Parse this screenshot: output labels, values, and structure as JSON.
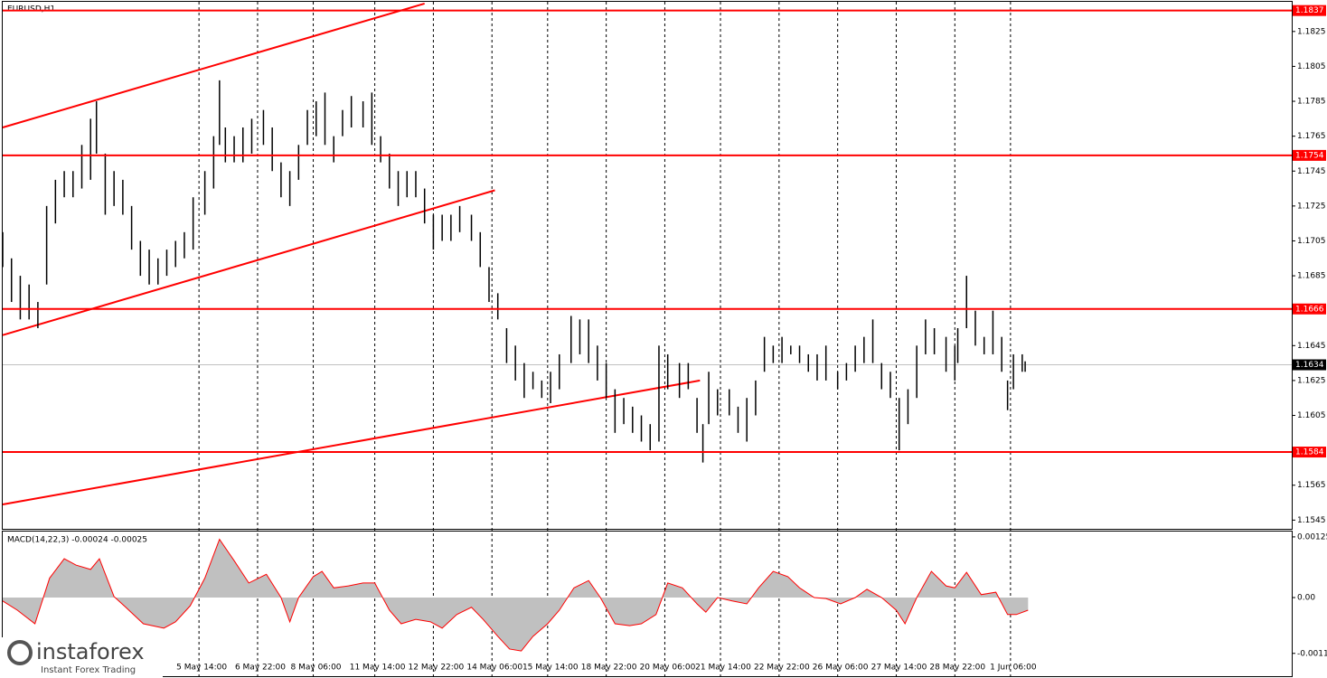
{
  "chart_data": [
    {
      "type": "ohlc",
      "title": "EURUSD,H1",
      "x": [
        0,
        3,
        6,
        9,
        12,
        15,
        18,
        21,
        24,
        27,
        30,
        32,
        35,
        38,
        41,
        44,
        47,
        50,
        53,
        56,
        59,
        62,
        65,
        69,
        72,
        74,
        76,
        79,
        82,
        85,
        89,
        92,
        95,
        98,
        101,
        104,
        107,
        110,
        113,
        116,
        119,
        123,
        126,
        129,
        132,
        135,
        138,
        141,
        144,
        147,
        150,
        153,
        156,
        160,
        163,
        166,
        169,
        172,
        175,
        178,
        181,
        184,
        187,
        190,
        194,
        197,
        200,
        203,
        206,
        209,
        212,
        215,
        218,
        221,
        224,
        227,
        231,
        234,
        237,
        239,
        241,
        244,
        248,
        251,
        254,
        257,
        260,
        263,
        266,
        269,
        272,
        275,
        278,
        281,
        285,
        288,
        291,
        294,
        297,
        300,
        303,
        306,
        309,
        312,
        315,
        318,
        322,
        325,
        326,
        329,
        332,
        335,
        338,
        341,
        343,
        345,
        348,
        349
      ],
      "high": [
        1.171,
        1.1695,
        1.1685,
        1.168,
        1.167,
        1.1725,
        1.174,
        1.1745,
        1.1745,
        1.176,
        1.1775,
        1.1785,
        1.1755,
        1.1745,
        1.174,
        1.1725,
        1.1705,
        1.17,
        1.1695,
        1.17,
        1.1705,
        1.171,
        1.173,
        1.1745,
        1.1765,
        1.1797,
        1.177,
        1.1765,
        1.177,
        1.1775,
        1.178,
        1.177,
        1.175,
        1.1745,
        1.176,
        1.178,
        1.1785,
        1.179,
        1.1765,
        1.178,
        1.1788,
        1.1785,
        1.179,
        1.1765,
        1.1755,
        1.1745,
        1.1745,
        1.1745,
        1.1735,
        1.172,
        1.172,
        1.172,
        1.1725,
        1.172,
        1.171,
        1.169,
        1.1675,
        1.1655,
        1.1645,
        1.1635,
        1.163,
        1.1625,
        1.163,
        1.164,
        1.1662,
        1.166,
        1.166,
        1.1645,
        1.1635,
        1.162,
        1.1615,
        1.161,
        1.1605,
        1.16,
        1.1645,
        1.164,
        1.1635,
        1.1635,
        1.1615,
        1.16,
        1.163,
        1.162,
        1.162,
        1.161,
        1.1615,
        1.1625,
        1.165,
        1.1645,
        1.165,
        1.1645,
        1.1645,
        1.164,
        1.164,
        1.1645,
        1.163,
        1.1635,
        1.1645,
        1.165,
        1.166,
        1.1635,
        1.163,
        1.1615,
        1.162,
        1.1645,
        1.166,
        1.1655,
        1.165,
        1.1645,
        1.1655,
        1.1685,
        1.1665,
        1.165,
        1.1665,
        1.165,
        1.1625,
        1.164,
        1.164,
        1.1636
      ],
      "low": [
        1.169,
        1.167,
        1.166,
        1.166,
        1.1655,
        1.168,
        1.1715,
        1.173,
        1.173,
        1.1735,
        1.174,
        1.1755,
        1.172,
        1.1725,
        1.172,
        1.17,
        1.1685,
        1.168,
        1.168,
        1.1685,
        1.169,
        1.1695,
        1.17,
        1.172,
        1.1735,
        1.176,
        1.175,
        1.175,
        1.175,
        1.1755,
        1.176,
        1.1745,
        1.173,
        1.1725,
        1.174,
        1.176,
        1.1765,
        1.176,
        1.175,
        1.1765,
        1.177,
        1.177,
        1.176,
        1.175,
        1.1735,
        1.1725,
        1.173,
        1.173,
        1.1715,
        1.17,
        1.1705,
        1.1705,
        1.171,
        1.1705,
        1.169,
        1.167,
        1.166,
        1.1635,
        1.1625,
        1.1615,
        1.162,
        1.1615,
        1.1612,
        1.162,
        1.1635,
        1.164,
        1.1635,
        1.1625,
        1.1615,
        1.1595,
        1.16,
        1.1595,
        1.159,
        1.1585,
        1.159,
        1.162,
        1.1615,
        1.162,
        1.1595,
        1.1578,
        1.16,
        1.1605,
        1.1605,
        1.1595,
        1.159,
        1.1605,
        1.163,
        1.1635,
        1.1635,
        1.164,
        1.1635,
        1.163,
        1.1625,
        1.1625,
        1.162,
        1.1625,
        1.163,
        1.1635,
        1.1635,
        1.162,
        1.1615,
        1.1585,
        1.16,
        1.1615,
        1.164,
        1.164,
        1.163,
        1.1625,
        1.1635,
        1.1655,
        1.1645,
        1.164,
        1.164,
        1.163,
        1.1608,
        1.162,
        1.163,
        1.163
      ],
      "color": "#000000",
      "xlim": [
        0,
        440
      ],
      "xticks": [
        {
          "value": 67,
          "label": "5 May 14:00"
        },
        {
          "value": 87,
          "label": "6 May 22:00"
        },
        {
          "value": 106,
          "label": "8 May 06:00"
        },
        {
          "value": 127,
          "label": "11 May 14:00"
        },
        {
          "value": 147,
          "label": "12 May 22:00"
        },
        {
          "value": 167,
          "label": "14 May 06:00"
        },
        {
          "value": 186,
          "label": "15 May 14:00"
        },
        {
          "value": 206,
          "label": "18 May 22:00"
        },
        {
          "value": 226,
          "label": "20 May 06:00"
        },
        {
          "value": 245,
          "label": "21 May 14:00"
        },
        {
          "value": 265,
          "label": "22 May 22:00"
        },
        {
          "value": 285,
          "label": "26 May 06:00"
        },
        {
          "value": 305,
          "label": "27 May 14:00"
        },
        {
          "value": 325,
          "label": "28 May 22:00"
        },
        {
          "value": 344,
          "label": "1 Jun 06:00"
        }
      ],
      "ylim": [
        1.154,
        1.1842
      ],
      "yticks": [
        1.1825,
        1.1805,
        1.1785,
        1.1765,
        1.1745,
        1.1725,
        1.1705,
        1.1685,
        1.1645,
        1.1625,
        1.1605,
        1.1565,
        1.1545
      ],
      "levels": [
        1.1837,
        1.1754,
        1.1666,
        1.1584
      ],
      "level_color": "#ff0000",
      "current_price": 1.1634,
      "trend_lines": [
        {
          "x": [
            0,
            144
          ],
          "y": [
            1.177,
            1.1841
          ]
        },
        {
          "x": [
            0,
            168
          ],
          "y": [
            1.1651,
            1.1734
          ]
        },
        {
          "x": [
            0,
            238
          ],
          "y": [
            1.1554,
            1.1625
          ]
        }
      ]
    },
    {
      "type": "area",
      "title": "MACD(14,22,3) -0.00024 -0.00025",
      "x": [
        0,
        5,
        11,
        16,
        21,
        25,
        30,
        33,
        38,
        42,
        48,
        55,
        59,
        64,
        69,
        74,
        79,
        84,
        90,
        95,
        98,
        101,
        106,
        109,
        113,
        118,
        123,
        127,
        132,
        136,
        141,
        146,
        150,
        155,
        160,
        164,
        169,
        173,
        177,
        181,
        186,
        190,
        195,
        200,
        204,
        209,
        214,
        218,
        223,
        227,
        232,
        237,
        240,
        244,
        249,
        254,
        258,
        263,
        268,
        272,
        277,
        281,
        286,
        291,
        295,
        300,
        305,
        308,
        312,
        317,
        322,
        325,
        329,
        334,
        339,
        343,
        346,
        350
      ],
      "values": [
        -7e-05,
        -0.00026,
        -0.00054,
        0.0004,
        0.0008,
        0.00067,
        0.00058,
        0.0008,
        2e-05,
        -0.0002,
        -0.00054,
        -0.00063,
        -0.0005,
        -0.00017,
        0.0004,
        0.0012,
        0.00076,
        0.0003,
        0.00048,
        0,
        -0.0005,
        0,
        0.00043,
        0.00054,
        0.0002,
        0.00024,
        0.0003,
        0.0003,
        -0.00026,
        -0.00054,
        -0.00045,
        -0.0005,
        -0.00063,
        -0.00035,
        -0.0002,
        -0.00045,
        -0.0008,
        -0.00106,
        -0.0011,
        -0.0008,
        -0.00054,
        -0.00026,
        0.0002,
        0.00035,
        0,
        -0.00054,
        -0.00058,
        -0.00054,
        -0.00035,
        0.0003,
        0.0002,
        -0.00013,
        -0.0003,
        0,
        -7e-05,
        -0.00013,
        0.0002,
        0.00054,
        0.00043,
        0.0002,
        0,
        -2e-05,
        -0.00013,
        0,
        0.00017,
        0,
        -0.00026,
        -0.00054,
        0,
        0.00054,
        0.00024,
        0.0002,
        0.00052,
        6e-05,
        0.00011,
        -0.00035,
        -0.00035,
        -0.00026
      ],
      "color": "#c0c0c0",
      "line_color": "#ff0000",
      "xlim": [
        0,
        440
      ],
      "ylim": [
        -0.00162,
        0.00136
      ],
      "yticks": [
        0.00125,
        {
          "value": 0,
          "label": "0.00"
        },
        -0.00115
      ]
    }
  ],
  "logo": {
    "name": "instaforex",
    "tagline": "Instant Forex Trading"
  }
}
